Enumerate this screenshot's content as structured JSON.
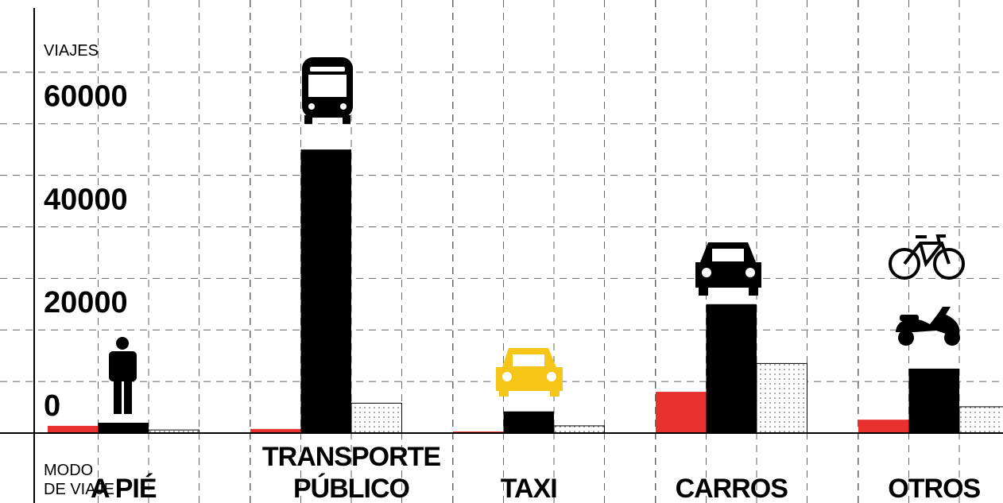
{
  "chart_data": {
    "type": "bar",
    "y_label": "VIAJES",
    "x_label": [
      "MODO",
      "DE VIAJE"
    ],
    "categories": [
      [
        "A PIÉ"
      ],
      [
        "TRANSPORTE",
        "PÚBLICO"
      ],
      [
        "TAXI"
      ],
      [
        "CARROS"
      ],
      [
        "OTROS"
      ]
    ],
    "series": [
      {
        "color": "#e8302e",
        "values": [
          1400,
          800,
          300,
          8000,
          2600
        ]
      },
      {
        "color": "#000000",
        "values": [
          2000,
          55000,
          4200,
          25000,
          12500
        ]
      },
      {
        "color": "#ffffff",
        "pattern": "dots",
        "values": [
          600,
          5800,
          1400,
          13500,
          5100
        ]
      }
    ],
    "ylim": [
      0,
      84000
    ],
    "yticks": [
      0,
      20000,
      40000,
      60000
    ],
    "grid_yticks": [
      10000,
      20000,
      30000,
      40000,
      50000,
      60000,
      70000
    ],
    "grid": true
  }
}
